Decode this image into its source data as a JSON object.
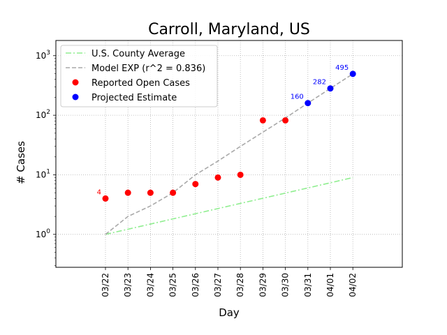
{
  "chart_data": {
    "type": "scatter",
    "title": "Carroll, Maryland, US",
    "xlabel": "Day",
    "ylabel": "# Cases",
    "yscale": "log",
    "ylim": [
      0.28,
      1800
    ],
    "y_ticks": [
      {
        "value": 1,
        "base": "10",
        "exp": "0"
      },
      {
        "value": 10,
        "base": "10",
        "exp": "1"
      },
      {
        "value": 100,
        "base": "10",
        "exp": "2"
      },
      {
        "value": 1000,
        "base": "10",
        "exp": "3"
      }
    ],
    "categories": [
      "03/22",
      "03/23",
      "03/24",
      "03/25",
      "03/26",
      "03/27",
      "03/28",
      "03/29",
      "03/30",
      "03/31",
      "04/01",
      "04/02"
    ],
    "grid": true,
    "legend_position": "top-left",
    "series": [
      {
        "name": "U.S. County Average",
        "kind": "line",
        "style": "dashdot",
        "color": "#90ee90",
        "x": [
          "03/22",
          "03/23",
          "03/24",
          "03/25",
          "03/26",
          "03/27",
          "03/28",
          "03/29",
          "03/30",
          "03/31",
          "04/01",
          "04/02"
        ],
        "values": [
          1.0,
          1.22,
          1.49,
          1.82,
          2.22,
          2.71,
          3.31,
          4.04,
          4.93,
          6.02,
          7.35,
          9.0
        ]
      },
      {
        "name": "Model EXP (r^2 = 0.836)",
        "kind": "line",
        "style": "dashed",
        "color": "#a9a9a9",
        "x": [
          "03/22",
          "03/23",
          "03/24",
          "03/25",
          "03/26",
          "03/27",
          "03/28",
          "03/29",
          "03/30",
          "03/31",
          "04/01",
          "04/02"
        ],
        "values": [
          1,
          2,
          3,
          5,
          10,
          17,
          30,
          52,
          90,
          160,
          282,
          495
        ]
      },
      {
        "name": "Reported Open Cases",
        "kind": "scatter",
        "color": "#ff0000",
        "x": [
          "03/22",
          "03/23",
          "03/24",
          "03/25",
          "03/26",
          "03/27",
          "03/28",
          "03/29",
          "03/30"
        ],
        "values": [
          4,
          5,
          5,
          5,
          7,
          9,
          10,
          82,
          82
        ]
      },
      {
        "name": "Projected Estimate",
        "kind": "scatter",
        "color": "#0000ff",
        "x": [
          "03/31",
          "04/01",
          "04/02"
        ],
        "values": [
          160,
          282,
          495
        ]
      }
    ],
    "annotations": [
      {
        "text": "4",
        "x": "03/22",
        "y": 4,
        "color": "#ff0000"
      },
      {
        "text": "160",
        "x": "03/31",
        "y": 160,
        "color": "#0000ff"
      },
      {
        "text": "282",
        "x": "04/01",
        "y": 282,
        "color": "#0000ff"
      },
      {
        "text": "495",
        "x": "04/02",
        "y": 495,
        "color": "#0000ff"
      }
    ]
  }
}
